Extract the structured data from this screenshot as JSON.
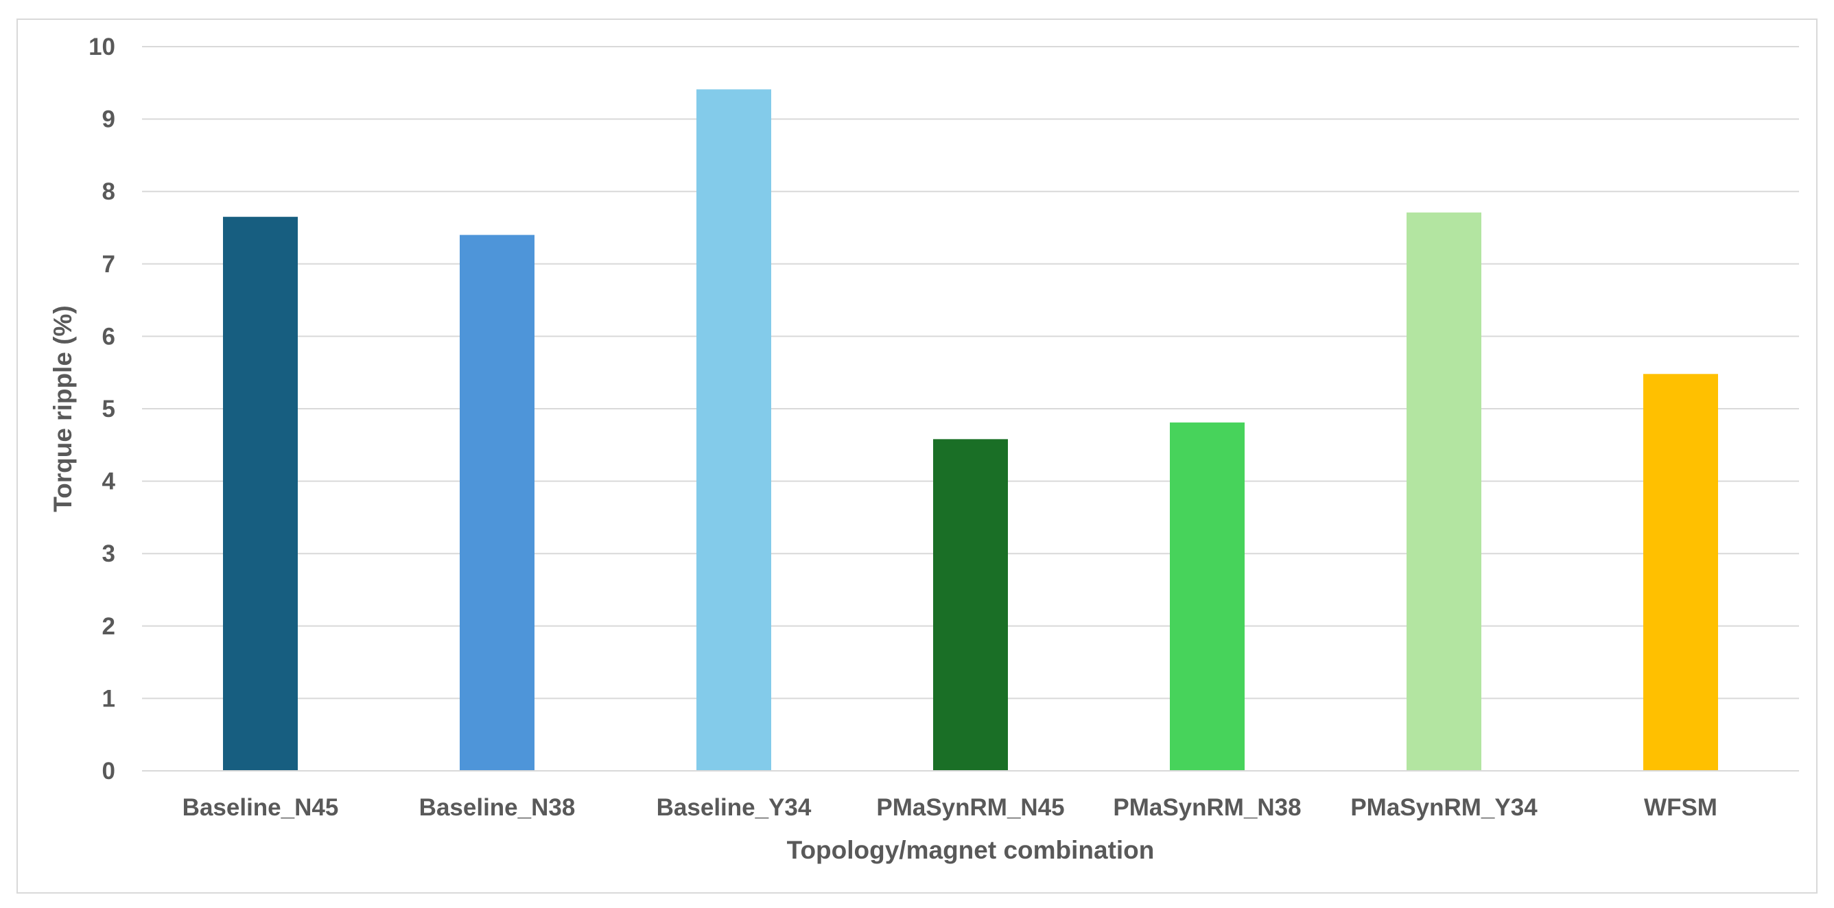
{
  "chart_data": {
    "type": "bar",
    "title": "",
    "xlabel": "Topology/magnet combination",
    "ylabel": "Torque ripple (%)",
    "ylim": [
      0,
      10
    ],
    "yticks": [
      0,
      1,
      2,
      3,
      4,
      5,
      6,
      7,
      8,
      9,
      10
    ],
    "grid": true,
    "categories": [
      "Baseline_N45",
      "Baseline_N38",
      "Baseline_Y34",
      "PMaSynRM_N45",
      "PMaSynRM_N38",
      "PMaSynRM_Y34",
      "WFSM"
    ],
    "values": [
      7.65,
      7.4,
      9.41,
      4.58,
      4.81,
      7.71,
      5.48
    ],
    "colors": [
      "#175e80",
      "#4e95d9",
      "#83cbea",
      "#1a6f26",
      "#47d35b",
      "#b3e5a1",
      "#ffc000"
    ]
  }
}
